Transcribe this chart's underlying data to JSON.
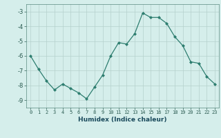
{
  "x": [
    0,
    1,
    2,
    3,
    4,
    5,
    6,
    7,
    8,
    9,
    10,
    11,
    12,
    13,
    14,
    15,
    16,
    17,
    18,
    19,
    20,
    21,
    22,
    23
  ],
  "y": [
    -6.0,
    -6.9,
    -7.7,
    -8.3,
    -7.9,
    -8.2,
    -8.5,
    -8.9,
    -8.1,
    -7.3,
    -6.0,
    -5.1,
    -5.2,
    -4.5,
    -3.1,
    -3.4,
    -3.4,
    -3.8,
    -4.7,
    -5.3,
    -6.4,
    -6.5,
    -7.4,
    -7.9
  ],
  "xlabel": "Humidex (Indice chaleur)",
  "ylim": [
    -9.5,
    -2.5
  ],
  "xlim": [
    -0.5,
    23.5
  ],
  "yticks": [
    -9,
    -8,
    -7,
    -6,
    -5,
    -4,
    -3
  ],
  "xticks": [
    0,
    1,
    2,
    3,
    4,
    5,
    6,
    7,
    8,
    9,
    10,
    11,
    12,
    13,
    14,
    15,
    16,
    17,
    18,
    19,
    20,
    21,
    22,
    23
  ],
  "line_color": "#2d7d6f",
  "marker": "D",
  "marker_size": 2.0,
  "bg_color": "#d5eeeb",
  "grid_color": "#b5d0cc",
  "fig_bg": "#d5eeeb",
  "xlabel_color": "#1a4a5c",
  "tick_color": "#2a5a50",
  "spine_color": "#5a8a80"
}
